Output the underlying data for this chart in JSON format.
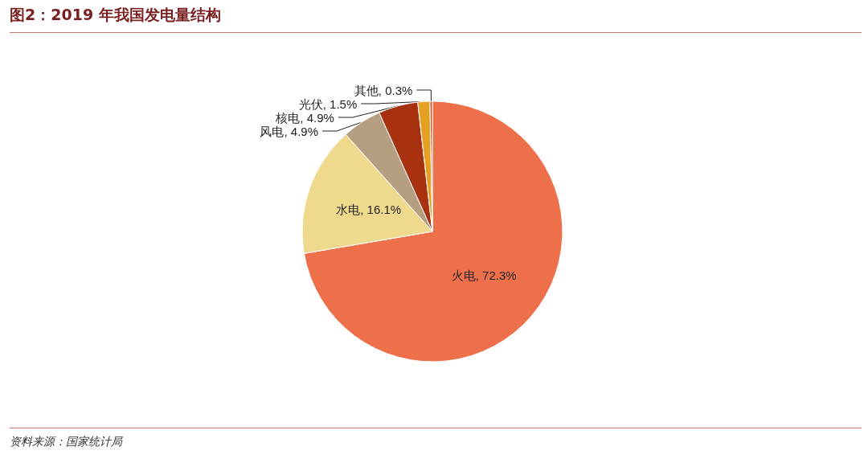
{
  "chart_data": {
    "type": "pie",
    "title": "图2：2019 年我国发电量结构",
    "categories": [
      "火电",
      "水电",
      "风电",
      "核电",
      "光伏",
      "其他"
    ],
    "values": [
      72.3,
      16.1,
      4.9,
      4.9,
      1.5,
      0.3
    ],
    "colors": [
      "#ed704b",
      "#efd98c",
      "#b69f80",
      "#a8320f",
      "#e6a024",
      "#c65a3a"
    ],
    "value_labels": [
      ", 72.3%",
      ", 16.1%",
      ", 4.9%",
      ", 4.9%",
      ", 1.5%",
      ", 0.3%"
    ],
    "legend": false,
    "annotations": [
      "资料来源：国家统计局"
    ]
  }
}
